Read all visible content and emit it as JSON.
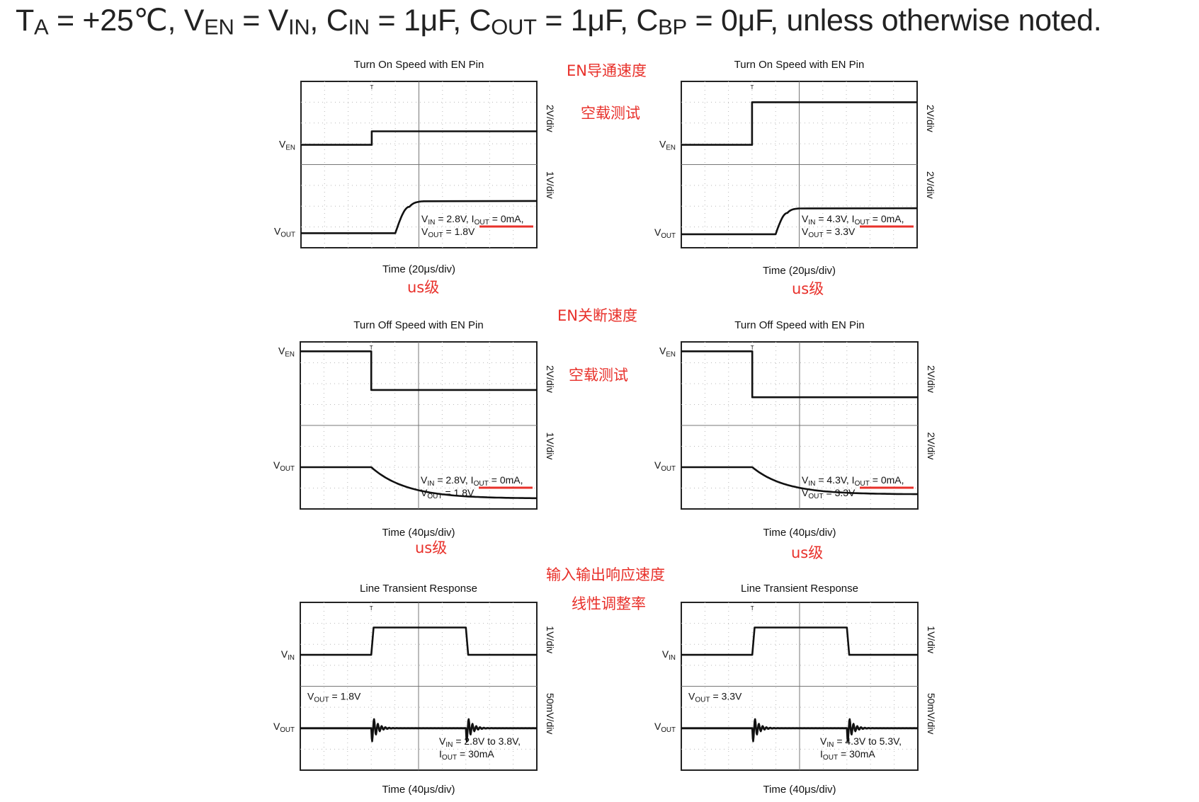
{
  "header": {
    "parts": [
      {
        "t": "T"
      },
      {
        "t": "A",
        "sub": true
      },
      {
        "t": " = +25℃, V"
      },
      {
        "t": "EN",
        "sub": true
      },
      {
        "t": " = V"
      },
      {
        "t": "IN",
        "sub": true
      },
      {
        "t": ", C"
      },
      {
        "t": "IN",
        "sub": true
      },
      {
        "t": " = 1μF, C"
      },
      {
        "t": "OUT",
        "sub": true
      },
      {
        "t": " = 1μF, C"
      },
      {
        "t": "BP",
        "sub": true
      },
      {
        "t": " = 0μF, unless otherwise noted."
      }
    ]
  },
  "annotations": {
    "en_on_speed": "EN导通速度",
    "no_load_test_1": "空载测试",
    "us_level": "us级",
    "en_off_speed": "EN关断速度",
    "no_load_test_2": "空载测试",
    "io_response_speed": "输入输出响应速度",
    "line_regulation": "线性调整率"
  },
  "chart_data": [
    {
      "type": "line",
      "title": "Turn On Speed with EN Pin",
      "xlabel": "Time (20μs/div)",
      "x_per_div_us": 20,
      "upper": {
        "trace": "VEN",
        "scale": "2V/div",
        "levels_div": [
          -1.05,
          -0.4
        ],
        "step_at_div": 3.0
      },
      "lower": {
        "trace": "VOUT",
        "scale": "1V/div",
        "levels_div": [
          -1.3,
          0.25
        ],
        "rise_start_div": 4.0,
        "rise_end_div": 5.2
      },
      "conditions": [
        "VIN = 2.8V, IOUT = 0mA,",
        "VOUT = 1.8V"
      ],
      "note": "us级"
    },
    {
      "type": "line",
      "title": "Turn On Speed with EN Pin",
      "xlabel": "Time (20μs/div)",
      "x_per_div_us": 20,
      "upper": {
        "trace": "VEN",
        "scale": "2V/div",
        "levels_div": [
          -1.05,
          1.0
        ],
        "step_at_div": 3.0
      },
      "lower": {
        "trace": "VOUT",
        "scale": "2V/div",
        "levels_div": [
          -1.35,
          -0.1
        ],
        "rise_start_div": 4.0,
        "rise_end_div": 5.0
      },
      "conditions": [
        "VIN = 4.3V, IOUT = 0mA,",
        "VOUT = 3.3V"
      ],
      "note": "us级"
    },
    {
      "type": "line",
      "title": "Turn Off Speed with EN Pin",
      "xlabel": "Time (40μs/div)",
      "x_per_div_us": 40,
      "upper": {
        "trace": "VEN",
        "scale": "2V/div",
        "levels_div": [
          -0.3,
          1.55
        ],
        "fall_at_div": 3.0
      },
      "lower": {
        "trace": "VOUT",
        "scale": "1V/div",
        "levels_div": [
          0.0,
          -1.5
        ],
        "decay_start_div": 3.0,
        "decay_tau_div": 1.5
      },
      "conditions": [
        "VIN = 2.8V, IOUT = 0mA,",
        "VOUT = 1.8V"
      ],
      "note": "us级"
    },
    {
      "type": "line",
      "title": "Turn Off Speed with EN Pin",
      "xlabel": "Time (40μs/div)",
      "x_per_div_us": 40,
      "upper": {
        "trace": "VEN",
        "scale": "2V/div",
        "levels_div": [
          -0.65,
          1.55
        ],
        "fall_at_div": 3.0
      },
      "lower": {
        "trace": "VOUT",
        "scale": "2V/div",
        "levels_div": [
          0.0,
          -1.3
        ],
        "decay_start_div": 3.0,
        "decay_tau_div": 1.4
      },
      "conditions": [
        "VIN = 4.3V, IOUT = 0mA,",
        "VOUT = 3.3V"
      ],
      "note": "us级"
    },
    {
      "type": "line",
      "title": "Line Transient Response",
      "xlabel": "Time (40μs/div)",
      "x_per_div_us": 40,
      "upper": {
        "trace": "VIN",
        "scale": "1V/div",
        "levels_div": [
          -0.5,
          0.8
        ],
        "step_up_div": 3.0,
        "step_down_div": 7.0
      },
      "lower": {
        "trace": "VOUT",
        "scale": "50mV/div",
        "level_div": 0.0,
        "ring_at_div": [
          3.0,
          7.0
        ]
      },
      "vout_label": "VOUT = 1.8V",
      "conditions": [
        "VIN = 2.8V to 3.8V,",
        "IOUT = 30mA"
      ]
    },
    {
      "type": "line",
      "title": "Line Transient Response",
      "xlabel": "Time (40μs/div)",
      "x_per_div_us": 40,
      "upper": {
        "trace": "VIN",
        "scale": "1V/div",
        "levels_div": [
          -0.5,
          0.8
        ],
        "step_up_div": 3.0,
        "step_down_div": 7.0
      },
      "lower": {
        "trace": "VOUT",
        "scale": "50mV/div",
        "level_div": 0.0,
        "ring_at_div": [
          3.0,
          7.0
        ]
      },
      "vout_label": "VOUT = 3.3V",
      "conditions": [
        "VIN = 4.3V to 5.3V,",
        "IOUT = 30mA"
      ]
    }
  ]
}
